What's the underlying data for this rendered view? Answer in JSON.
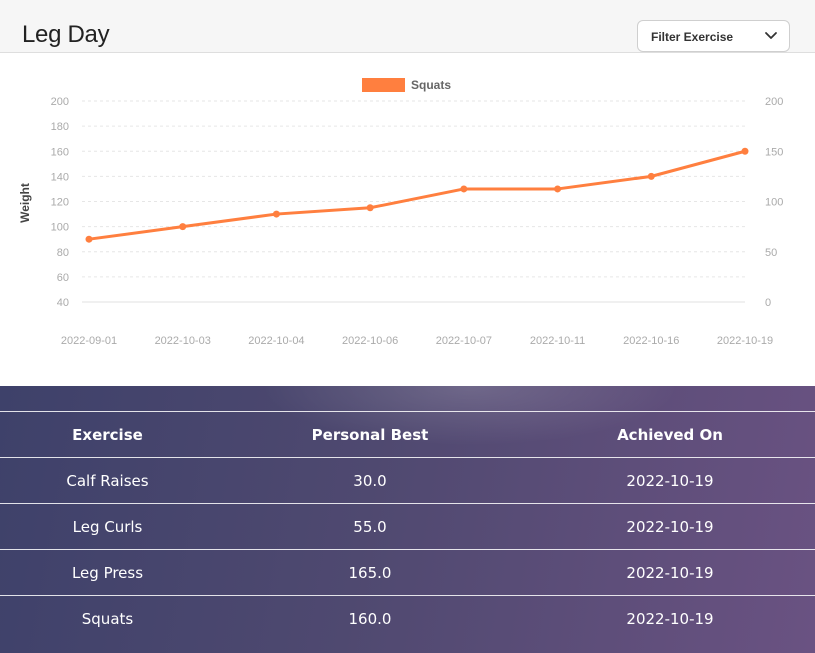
{
  "header": {
    "title": "Leg Day",
    "filter_label": "Filter Exercise",
    "chevron_icon": "chevron-down-icon"
  },
  "chart_data": {
    "type": "line",
    "title": "",
    "legend": {
      "placement": "top-center",
      "entries": [
        "Squats"
      ]
    },
    "x": [
      "2022-09-01",
      "2022-10-03",
      "2022-10-04",
      "2022-10-06",
      "2022-10-07",
      "2022-10-11",
      "2022-10-16",
      "2022-10-19"
    ],
    "series": [
      {
        "name": "Squats",
        "color": "#ff7f3f",
        "values": [
          90,
          100,
          110,
          115,
          130,
          130,
          140,
          160
        ]
      }
    ],
    "ylabel": "Weight",
    "xlabel": "",
    "ylim": [
      40,
      200
    ],
    "yticks": [
      40,
      60,
      80,
      100,
      120,
      140,
      160,
      180,
      200
    ],
    "y2ticks": [
      0,
      50,
      100,
      150,
      200
    ],
    "grid": true
  },
  "table": {
    "headers": [
      "Exercise",
      "Personal Best",
      "Achieved On"
    ],
    "rows": [
      [
        "Calf Raises",
        "30.0",
        "2022-10-19"
      ],
      [
        "Leg Curls",
        "55.0",
        "2022-10-19"
      ],
      [
        "Leg Press",
        "165.0",
        "2022-10-19"
      ],
      [
        "Squats",
        "160.0",
        "2022-10-19"
      ]
    ]
  }
}
